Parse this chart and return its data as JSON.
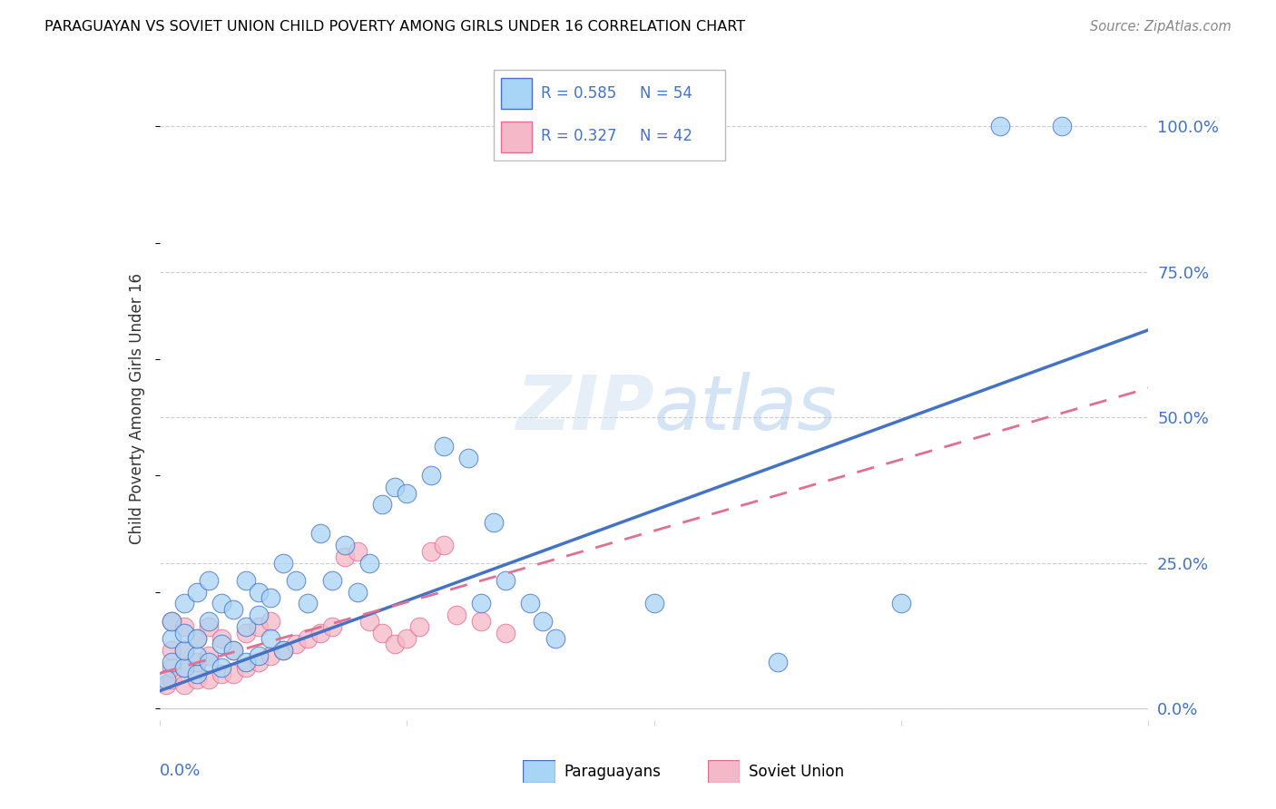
{
  "title": "PARAGUAYAN VS SOVIET UNION CHILD POVERTY AMONG GIRLS UNDER 16 CORRELATION CHART",
  "source": "Source: ZipAtlas.com",
  "ylabel": "Child Poverty Among Girls Under 16",
  "ytick_labels": [
    "0.0%",
    "25.0%",
    "50.0%",
    "75.0%",
    "100.0%"
  ],
  "ytick_values": [
    0.0,
    0.25,
    0.5,
    0.75,
    1.0
  ],
  "legend_paraguayan": "Paraguayans",
  "legend_soviet": "Soviet Union",
  "legend_r_par": "0.585",
  "legend_n_par": "54",
  "legend_r_sov": "0.327",
  "legend_n_sov": "42",
  "color_paraguayan_fill": "#A8D4F5",
  "color_paraguayan_edge": "#4472C4",
  "color_soviet_fill": "#F5B8C8",
  "color_soviet_edge": "#E07090",
  "color_blue_text": "#4472C4",
  "color_line_paraguayan": "#4472C4",
  "color_line_soviet": "#E07090",
  "watermark": "ZIPatlas",
  "xlim": [
    0.0,
    0.08
  ],
  "ylim": [
    -0.02,
    1.05
  ],
  "blue_line_x": [
    0.0,
    0.08
  ],
  "blue_line_y": [
    0.03,
    0.65
  ],
  "pink_line_x": [
    0.0,
    0.08
  ],
  "pink_line_y": [
    0.06,
    0.55
  ],
  "par_x": [
    0.0005,
    0.001,
    0.001,
    0.001,
    0.002,
    0.002,
    0.002,
    0.002,
    0.003,
    0.003,
    0.003,
    0.003,
    0.004,
    0.004,
    0.004,
    0.005,
    0.005,
    0.005,
    0.006,
    0.006,
    0.007,
    0.007,
    0.007,
    0.008,
    0.008,
    0.008,
    0.009,
    0.009,
    0.01,
    0.01,
    0.011,
    0.012,
    0.013,
    0.014,
    0.015,
    0.016,
    0.017,
    0.018,
    0.019,
    0.02,
    0.022,
    0.023,
    0.025,
    0.026,
    0.027,
    0.028,
    0.03,
    0.031,
    0.032,
    0.04,
    0.05,
    0.06,
    0.068,
    0.073
  ],
  "par_y": [
    0.05,
    0.08,
    0.12,
    0.15,
    0.07,
    0.1,
    0.13,
    0.18,
    0.06,
    0.09,
    0.12,
    0.2,
    0.08,
    0.15,
    0.22,
    0.07,
    0.11,
    0.18,
    0.1,
    0.17,
    0.08,
    0.14,
    0.22,
    0.09,
    0.16,
    0.2,
    0.12,
    0.19,
    0.1,
    0.25,
    0.22,
    0.18,
    0.3,
    0.22,
    0.28,
    0.2,
    0.25,
    0.35,
    0.38,
    0.37,
    0.4,
    0.45,
    0.43,
    0.18,
    0.32,
    0.22,
    0.18,
    0.15,
    0.12,
    0.18,
    0.08,
    0.18,
    1.0,
    1.0
  ],
  "sov_x": [
    0.0005,
    0.001,
    0.001,
    0.001,
    0.001,
    0.002,
    0.002,
    0.002,
    0.002,
    0.003,
    0.003,
    0.003,
    0.004,
    0.004,
    0.004,
    0.005,
    0.005,
    0.006,
    0.006,
    0.007,
    0.007,
    0.008,
    0.008,
    0.009,
    0.009,
    0.01,
    0.011,
    0.012,
    0.013,
    0.014,
    0.015,
    0.016,
    0.017,
    0.018,
    0.019,
    0.02,
    0.021,
    0.022,
    0.023,
    0.024,
    0.026,
    0.028
  ],
  "sov_y": [
    0.04,
    0.05,
    0.07,
    0.1,
    0.15,
    0.04,
    0.07,
    0.1,
    0.14,
    0.05,
    0.08,
    0.12,
    0.05,
    0.09,
    0.14,
    0.06,
    0.12,
    0.06,
    0.1,
    0.07,
    0.13,
    0.08,
    0.14,
    0.09,
    0.15,
    0.1,
    0.11,
    0.12,
    0.13,
    0.14,
    0.26,
    0.27,
    0.15,
    0.13,
    0.11,
    0.12,
    0.14,
    0.27,
    0.28,
    0.16,
    0.15,
    0.13
  ]
}
